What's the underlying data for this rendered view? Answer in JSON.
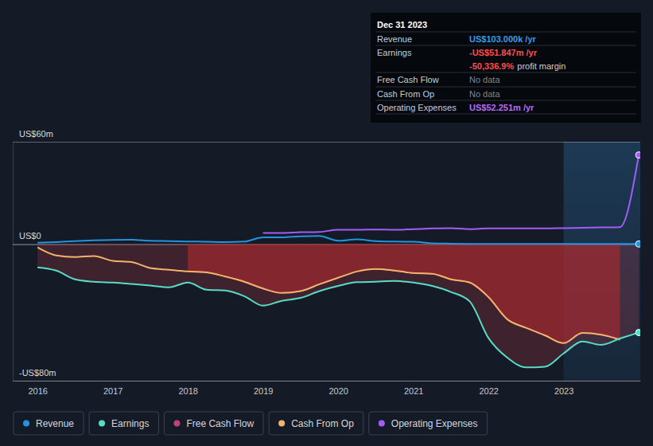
{
  "chart_data": {
    "type": "line",
    "x": [
      2016,
      2016.25,
      2016.5,
      2016.75,
      2017,
      2017.25,
      2017.5,
      2017.75,
      2018,
      2018.25,
      2018.5,
      2018.75,
      2019,
      2019.25,
      2019.5,
      2019.75,
      2020,
      2020.25,
      2020.5,
      2020.75,
      2021,
      2021.25,
      2021.5,
      2021.75,
      2022,
      2022.25,
      2022.5,
      2022.75,
      2023,
      2023.25,
      2023.5,
      2023.75,
      2024
    ],
    "xlim": [
      2015.67,
      2024.02
    ],
    "xticks": [
      2016,
      2017,
      2018,
      2019,
      2020,
      2021,
      2022,
      2023
    ],
    "ylim": [
      -80,
      60
    ],
    "yticks": [
      {
        "value": -80,
        "label": "-US$80m"
      },
      {
        "value": 0,
        "label": "US$0"
      },
      {
        "value": 60,
        "label": "US$60m"
      }
    ],
    "grid": true,
    "highlight_x": [
      2023,
      2024.02
    ],
    "series": [
      {
        "name": "Revenue",
        "color": "#2394df",
        "marker": "end",
        "values": [
          0.8,
          1.2,
          1.8,
          2.2,
          2.5,
          2.6,
          2.0,
          1.8,
          1.6,
          1.4,
          1.2,
          1.5,
          4.0,
          4.0,
          4.6,
          4.8,
          2.0,
          2.8,
          1.8,
          1.5,
          1.4,
          0.5,
          0.3,
          0.2,
          0.2,
          0.1,
          0.1,
          0.1,
          0.1,
          0.1,
          0.1,
          0.1,
          0.103
        ]
      },
      {
        "name": "Earnings",
        "color": "#58dcc4",
        "type": "area",
        "marker": "end",
        "values": [
          -13.6,
          -15.5,
          -20.6,
          -22,
          -22.5,
          -23.3,
          -24.2,
          -25.3,
          -22.5,
          -26.7,
          -27.2,
          -30.5,
          -36,
          -33.2,
          -31.5,
          -27.5,
          -24.5,
          -22.3,
          -22,
          -21.6,
          -22.5,
          -24.5,
          -28,
          -33.5,
          -55,
          -66.5,
          -72.2,
          -71.8,
          -64,
          -57,
          -59,
          -55.3,
          -51.8
        ]
      },
      {
        "name": "Free Cash Flow",
        "color": "#c2417a",
        "type": "area",
        "values": [
          null,
          null,
          null,
          null,
          null,
          null,
          null,
          null,
          -16,
          -16.5,
          -19,
          -22,
          -26,
          -28.6,
          -27.5,
          -23.5,
          -19.7,
          -16,
          -14.5,
          -15.5,
          -16.9,
          -17.3,
          -20.6,
          -22.5,
          -31,
          -44,
          -49,
          -53.4,
          -58,
          -52,
          -53,
          -56,
          null
        ]
      },
      {
        "name": "Cash From Op",
        "color": "#f2b36b",
        "values": [
          -1.9,
          -6.6,
          -7.5,
          -7,
          -9.8,
          -10.5,
          -14,
          -15,
          -16,
          -16.5,
          -19,
          -22,
          -26,
          -28.6,
          -27.5,
          -23.5,
          -19.7,
          -16,
          -14.5,
          -15.5,
          -16.9,
          -17.3,
          -20.6,
          -22.5,
          -31,
          -44,
          -49,
          -53.4,
          -58,
          -52,
          -53,
          -56,
          null
        ]
      },
      {
        "name": "Operating Expenses",
        "color": "#a45cf7",
        "marker": "end",
        "values": [
          null,
          null,
          null,
          null,
          null,
          null,
          null,
          null,
          null,
          null,
          null,
          null,
          6.6,
          6.6,
          7.0,
          7.2,
          8.4,
          8.4,
          8.6,
          8.4,
          8.8,
          9.2,
          9.4,
          8.8,
          9.2,
          9.2,
          9.2,
          9.2,
          9.4,
          9.6,
          9.8,
          10.0,
          52.251
        ]
      }
    ],
    "tooltip": {
      "date": "Dec 31 2023",
      "rows": [
        {
          "label": "Revenue",
          "value": "US$103.000k /yr"
        },
        {
          "label": "Earnings",
          "value": "-US$51.847m /yr"
        },
        {
          "label": "Free Cash Flow",
          "value": "No data"
        },
        {
          "label": "Cash From Op",
          "value": "No data"
        },
        {
          "label": "Operating Expenses",
          "value": "US$52.251m /yr"
        }
      ],
      "margin": {
        "value": "-50,336.9%",
        "label": "profit margin"
      }
    }
  }
}
